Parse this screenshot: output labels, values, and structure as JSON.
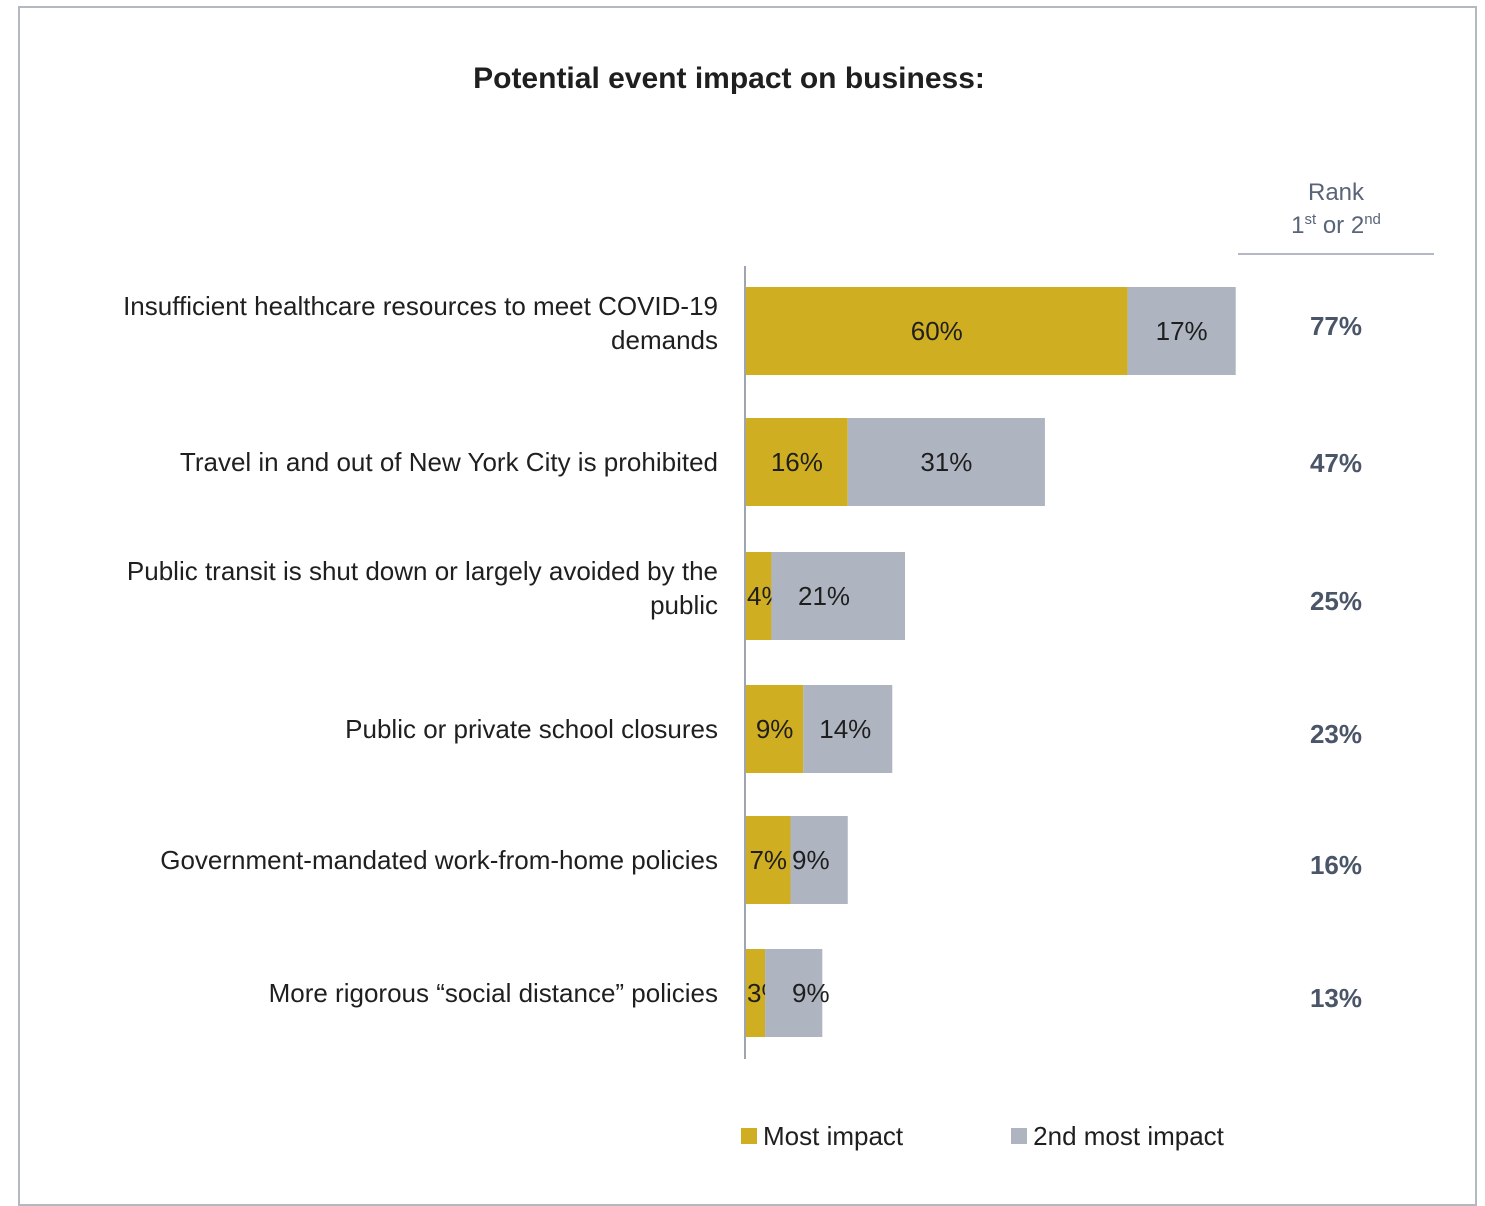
{
  "chart_data": {
    "type": "bar",
    "orientation": "horizontal",
    "stacked": true,
    "title": "Potential event impact on business:",
    "categories": [
      [
        "Insufficient healthcare resources to meet COVID-19",
        "demands"
      ],
      [
        "Travel in and out of New York City is prohibited"
      ],
      [
        "Public transit is shut down or largely avoided by the",
        "public"
      ],
      [
        "Public or private school closures"
      ],
      [
        "Government-mandated work-from-home policies"
      ],
      [
        "More rigorous “social distance” policies"
      ]
    ],
    "series": [
      {
        "name": "Most impact",
        "color": "#cfae22",
        "values": [
          60,
          16,
          4,
          9,
          7,
          3
        ]
      },
      {
        "name": "2nd most impact",
        "color": "#aeb4c0",
        "values": [
          17,
          31,
          21,
          14,
          9,
          9
        ]
      }
    ],
    "value_suffix": "%",
    "totals": {
      "header_line1": "Rank",
      "header_line2": {
        "first": "1",
        "first_sup": "st",
        "middle": " or 2",
        "second_sup": "nd"
      },
      "values": [
        77,
        47,
        25,
        23,
        16,
        13
      ]
    },
    "xlim": [
      0,
      100
    ],
    "grid": false,
    "legend_position": "bottom"
  }
}
